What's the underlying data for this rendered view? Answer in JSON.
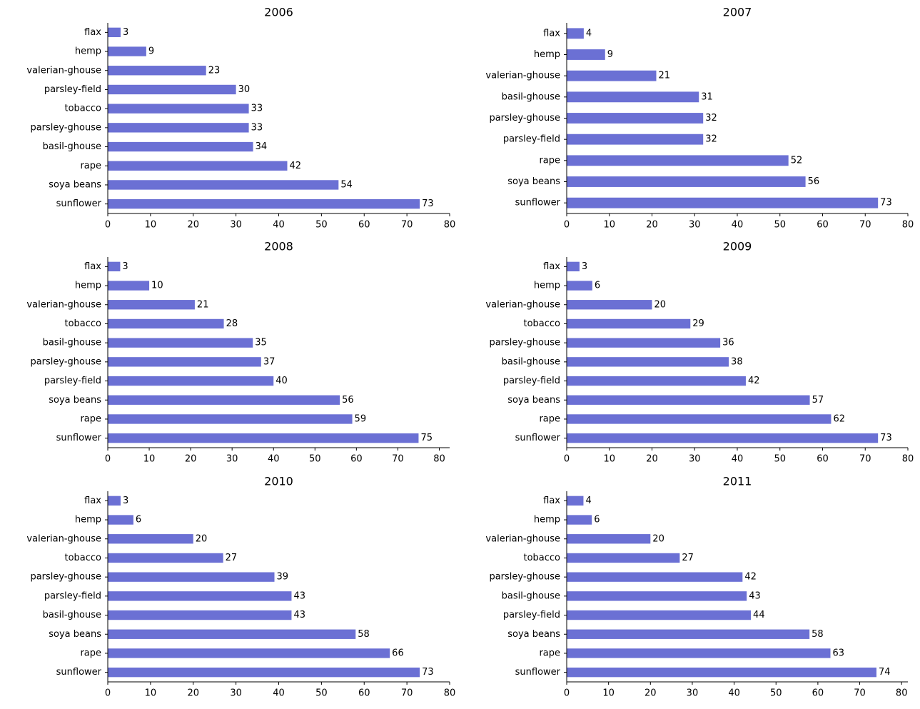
{
  "chart_data": [
    {
      "type": "bar",
      "orientation": "horizontal",
      "title": "2006",
      "xlabel": "",
      "ylabel": "",
      "xlim": [
        0,
        80
      ],
      "xticks": [
        0,
        10,
        20,
        30,
        40,
        50,
        60,
        70,
        80
      ],
      "grid": false,
      "color": "#6b70d4",
      "categories": [
        "flax",
        "hemp",
        "valerian-ghouse",
        "parsley-field",
        "tobacco",
        "parsley-ghouse",
        "basil-ghouse",
        "rape",
        "soya beans",
        "sunflower"
      ],
      "values": [
        3,
        9,
        23,
        30,
        33,
        33,
        34,
        42,
        54,
        73
      ]
    },
    {
      "type": "bar",
      "orientation": "horizontal",
      "title": "2007",
      "xlabel": "",
      "ylabel": "",
      "xlim": [
        0,
        80
      ],
      "xticks": [
        0,
        10,
        20,
        30,
        40,
        50,
        60,
        70,
        80
      ],
      "grid": false,
      "color": "#6b70d4",
      "categories": [
        "flax",
        "hemp",
        "valerian-ghouse",
        "basil-ghouse",
        "parsley-ghouse",
        "parsley-field",
        "rape",
        "soya beans",
        "sunflower"
      ],
      "values": [
        4,
        9,
        21,
        31,
        32,
        32,
        52,
        56,
        73
      ]
    },
    {
      "type": "bar",
      "orientation": "horizontal",
      "title": "2008",
      "xlabel": "",
      "ylabel": "",
      "xlim": [
        0,
        82.5
      ],
      "xticks": [
        0,
        10,
        20,
        30,
        40,
        50,
        60,
        70,
        80
      ],
      "grid": false,
      "color": "#6b70d4",
      "categories": [
        "flax",
        "hemp",
        "valerian-ghouse",
        "tobacco",
        "basil-ghouse",
        "parsley-ghouse",
        "parsley-field",
        "soya beans",
        "rape",
        "sunflower"
      ],
      "values": [
        3,
        10,
        21,
        28,
        35,
        37,
        40,
        56,
        59,
        75
      ]
    },
    {
      "type": "bar",
      "orientation": "horizontal",
      "title": "2009",
      "xlabel": "",
      "ylabel": "",
      "xlim": [
        0,
        80
      ],
      "xticks": [
        0,
        10,
        20,
        30,
        40,
        50,
        60,
        70,
        80
      ],
      "grid": false,
      "color": "#6b70d4",
      "categories": [
        "flax",
        "hemp",
        "valerian-ghouse",
        "tobacco",
        "parsley-ghouse",
        "basil-ghouse",
        "parsley-field",
        "soya beans",
        "rape",
        "sunflower"
      ],
      "values": [
        3,
        6,
        20,
        29,
        36,
        38,
        42,
        57,
        62,
        73
      ]
    },
    {
      "type": "bar",
      "orientation": "horizontal",
      "title": "2010",
      "xlabel": "",
      "ylabel": "",
      "xlim": [
        0,
        80
      ],
      "xticks": [
        0,
        10,
        20,
        30,
        40,
        50,
        60,
        70,
        80
      ],
      "grid": false,
      "color": "#6b70d4",
      "categories": [
        "flax",
        "hemp",
        "valerian-ghouse",
        "tobacco",
        "parsley-ghouse",
        "parsley-field",
        "basil-ghouse",
        "soya beans",
        "rape",
        "sunflower"
      ],
      "values": [
        3,
        6,
        20,
        27,
        39,
        43,
        43,
        58,
        66,
        73
      ]
    },
    {
      "type": "bar",
      "orientation": "horizontal",
      "title": "2011",
      "xlabel": "",
      "ylabel": "",
      "xlim": [
        0,
        81.5
      ],
      "xticks": [
        0,
        10,
        20,
        30,
        40,
        50,
        60,
        70,
        80
      ],
      "grid": false,
      "color": "#6b70d4",
      "categories": [
        "flax",
        "hemp",
        "valerian-ghouse",
        "tobacco",
        "parsley-ghouse",
        "basil-ghouse",
        "parsley-field",
        "soya beans",
        "rape",
        "sunflower"
      ],
      "values": [
        4,
        6,
        20,
        27,
        42,
        43,
        44,
        58,
        63,
        74
      ]
    }
  ]
}
